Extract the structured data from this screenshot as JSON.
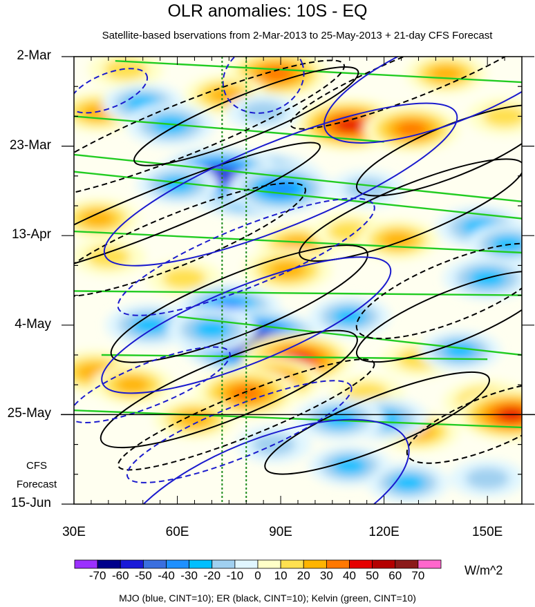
{
  "chart_data": {
    "type": "heatmap",
    "title": "OLR anomalies: 10S - EQ",
    "subtitle": "Satellite-based bservations from 2-Mar-2013 to 25-May-2013 + 21-day CFS Forecast",
    "x_tick_labels": [
      "30E",
      "60E",
      "90E",
      "120E",
      "150E"
    ],
    "x_ticks": [
      30,
      60,
      90,
      120,
      150
    ],
    "xlim": [
      30,
      160
    ],
    "y_tick_labels": [
      "2-Mar",
      "23-Mar",
      "13-Apr",
      "4-May",
      "25-May",
      "15-Jun"
    ],
    "y_ticks_day": [
      0,
      21,
      42,
      63,
      84,
      105
    ],
    "forecast_label_line1": "CFS",
    "forecast_label_line2": "Forecast",
    "forecast_start_label": "25-May",
    "colorbar": {
      "labels": [
        "-70",
        "-60",
        "-50",
        "-40",
        "-30",
        "-20",
        "-10",
        "0",
        "10",
        "20",
        "30",
        "40",
        "50",
        "60",
        "70"
      ],
      "colors": [
        "#9b30ff",
        "#00008b",
        "#1a1ad8",
        "#3a6fdf",
        "#1e90ff",
        "#00bfff",
        "#a0d0f0",
        "#e0f6ff",
        "#ffffc8",
        "#ffe050",
        "#ffb400",
        "#ff7800",
        "#e60000",
        "#b40000",
        "#8b1a1a",
        "#ff66cc"
      ],
      "units": "W/m^2"
    },
    "reference_lines_lon": [
      73,
      80
    ],
    "footer": "MJO (blue, CINT=10); ER (black, CINT=10); Kelvin (green, CINT=10)",
    "contour_colors": {
      "mjo": "#1a1acd",
      "er": "#000000",
      "kelvin": "#22cc22"
    },
    "anomaly_blobs": [
      {
        "lon": 89,
        "day": 4,
        "val": 40
      },
      {
        "lon": 74,
        "day": 9,
        "val": 25
      },
      {
        "lon": 45,
        "day": 3,
        "val": 20
      },
      {
        "lon": 110,
        "day": 16,
        "val": 45
      },
      {
        "lon": 128,
        "day": 17,
        "val": 35
      },
      {
        "lon": 138,
        "day": 4,
        "val": 25
      },
      {
        "lon": 155,
        "day": 14,
        "val": 20
      },
      {
        "lon": 37,
        "day": 13,
        "val": 25
      },
      {
        "lon": 50,
        "day": 11,
        "val": -25
      },
      {
        "lon": 58,
        "day": 16,
        "val": -30
      },
      {
        "lon": 85,
        "day": 13,
        "val": -20
      },
      {
        "lon": 82,
        "day": 30,
        "val": -70
      },
      {
        "lon": 72,
        "day": 28,
        "val": -55
      },
      {
        "lon": 90,
        "day": 31,
        "val": -40
      },
      {
        "lon": 60,
        "day": 30,
        "val": -25
      },
      {
        "lon": 115,
        "day": 31,
        "val": -20
      },
      {
        "lon": 148,
        "day": 40,
        "val": -30
      },
      {
        "lon": 156,
        "day": 44,
        "val": -25
      },
      {
        "lon": 37,
        "day": 38,
        "val": 25
      },
      {
        "lon": 40,
        "day": 47,
        "val": 20
      },
      {
        "lon": 95,
        "day": 44,
        "val": 25
      },
      {
        "lon": 110,
        "day": 41,
        "val": 20
      },
      {
        "lon": 124,
        "day": 43,
        "val": 25
      },
      {
        "lon": 92,
        "day": 50,
        "val": 30
      },
      {
        "lon": 62,
        "day": 52,
        "val": 20
      },
      {
        "lon": 150,
        "day": 52,
        "val": -30
      },
      {
        "lon": 75,
        "day": 59,
        "val": -40
      },
      {
        "lon": 82,
        "day": 67,
        "val": -70
      },
      {
        "lon": 52,
        "day": 63,
        "val": -30
      },
      {
        "lon": 70,
        "day": 64,
        "val": -30
      },
      {
        "lon": 110,
        "day": 61,
        "val": -25
      },
      {
        "lon": 36,
        "day": 74,
        "val": 30
      },
      {
        "lon": 47,
        "day": 77,
        "val": 25
      },
      {
        "lon": 95,
        "day": 71,
        "val": 45
      },
      {
        "lon": 88,
        "day": 76,
        "val": 35
      },
      {
        "lon": 80,
        "day": 79,
        "val": 40
      },
      {
        "lon": 65,
        "day": 85,
        "val": 25
      },
      {
        "lon": 130,
        "day": 71,
        "val": 20
      },
      {
        "lon": 115,
        "day": 79,
        "val": 20
      },
      {
        "lon": 150,
        "day": 81,
        "val": 30
      },
      {
        "lon": 157,
        "day": 84,
        "val": 45
      },
      {
        "lon": 130,
        "day": 88,
        "val": 25
      },
      {
        "lon": 120,
        "day": 85,
        "val": -30
      },
      {
        "lon": 107,
        "day": 85,
        "val": -30
      },
      {
        "lon": 142,
        "day": 69,
        "val": -25
      },
      {
        "lon": 110,
        "day": 96,
        "val": -25
      },
      {
        "lon": 127,
        "day": 100,
        "val": -25
      },
      {
        "lon": 150,
        "day": 99,
        "val": -20
      },
      {
        "lon": 88,
        "day": 91,
        "val": -20
      }
    ],
    "contours_kelvin": [
      {
        "lon0": 42,
        "day0": 1,
        "lon1": 160,
        "day1": 6
      },
      {
        "lon0": 30,
        "day0": 14,
        "lon1": 120,
        "day1": 20
      },
      {
        "lon0": 30,
        "day0": 23,
        "lon1": 160,
        "day1": 34
      },
      {
        "lon0": 30,
        "day0": 27,
        "lon1": 160,
        "day1": 38
      },
      {
        "lon0": 30,
        "day0": 41,
        "lon1": 160,
        "day1": 46
      },
      {
        "lon0": 30,
        "day0": 55,
        "lon1": 160,
        "day1": 56
      },
      {
        "lon0": 60,
        "day0": 61,
        "lon1": 160,
        "day1": 70
      },
      {
        "lon0": 38,
        "day0": 70,
        "lon1": 150,
        "day1": 71
      },
      {
        "lon0": 30,
        "day0": 83,
        "lon1": 160,
        "day1": 87
      }
    ],
    "contours_er": [
      {
        "lon": 130,
        "day": 4,
        "rx": 40,
        "ry": 5,
        "dash": true
      },
      {
        "lon": 62,
        "day": 17,
        "rx": 50,
        "ry": 6,
        "dash": true
      },
      {
        "lon": 80,
        "day": 14,
        "rx": 35,
        "ry": 5,
        "dash": false
      },
      {
        "lon": 140,
        "day": 22,
        "rx": 30,
        "ry": 6,
        "dash": false
      },
      {
        "lon": 55,
        "day": 36,
        "rx": 50,
        "ry": 5,
        "dash": false
      },
      {
        "lon": 128,
        "day": 36,
        "rx": 35,
        "ry": 6,
        "dash": false
      },
      {
        "lon": 60,
        "day": 43,
        "rx": 40,
        "ry": 6,
        "dash": true
      },
      {
        "lon": 140,
        "day": 55,
        "rx": 30,
        "ry": 7,
        "dash": true
      },
      {
        "lon": 78,
        "day": 58,
        "rx": 40,
        "ry": 7,
        "dash": false
      },
      {
        "lon": 140,
        "day": 61,
        "rx": 30,
        "ry": 6,
        "dash": false
      },
      {
        "lon": 75,
        "day": 78,
        "rx": 40,
        "ry": 7,
        "dash": false
      },
      {
        "lon": 118,
        "day": 86,
        "rx": 35,
        "ry": 6,
        "dash": false
      },
      {
        "lon": 80,
        "day": 84,
        "rx": 40,
        "ry": 5,
        "dash": true
      },
      {
        "lon": 150,
        "day": 86,
        "rx": 25,
        "ry": 6,
        "dash": true
      }
    ],
    "contours_mjo": [
      {
        "lon": 140,
        "day": 5,
        "rx": 40,
        "ry": 10,
        "dash": false
      },
      {
        "lon": 85,
        "day": 5,
        "rx": 12,
        "ry": 8,
        "dash": true
      },
      {
        "lon": 40,
        "day": 8,
        "rx": 12,
        "ry": 4,
        "dash": true
      },
      {
        "lon": 90,
        "day": 30,
        "rx": 55,
        "ry": 10,
        "dash": false
      },
      {
        "lon": 80,
        "day": 47,
        "rx": 40,
        "ry": 7,
        "dash": true
      },
      {
        "lon": 80,
        "day": 63,
        "rx": 45,
        "ry": 9,
        "dash": false
      },
      {
        "lon": 52,
        "day": 77,
        "rx": 25,
        "ry": 5,
        "dash": true
      },
      {
        "lon": 78,
        "day": 88,
        "rx": 35,
        "ry": 6,
        "dash": true
      },
      {
        "lon": 85,
        "day": 104,
        "rx": 45,
        "ry": 14,
        "dash": false
      }
    ]
  }
}
